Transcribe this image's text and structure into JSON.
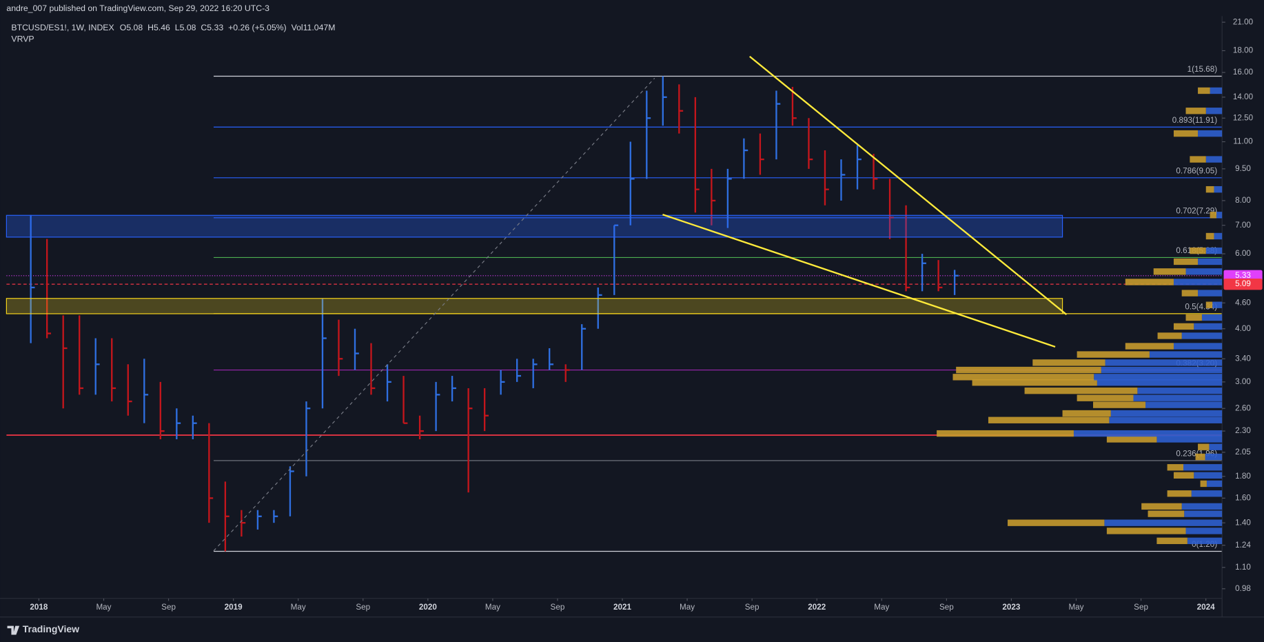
{
  "header": {
    "publisher": "andre_007 published on TradingView.com, Sep 29, 2022 16:20 UTC-3",
    "symbol": "BTCUSD/ES1!, 1W, INDEX",
    "ohlc": [
      {
        "label": "O",
        "value": 5.08
      },
      {
        "label": "H",
        "value": 5.46
      },
      {
        "label": "L",
        "value": 5.08
      },
      {
        "label": "C",
        "value": 5.33
      }
    ],
    "change": "+0.26 (+5.05%)",
    "volume": "Vol11.047M",
    "indicator": "VRVP"
  },
  "footer": {
    "brand": "TradingView"
  },
  "chart_data": {
    "type": "ohlc",
    "log_scale": true,
    "up_color": "#2f6fe0",
    "down_color": "#c4161c",
    "x": [
      "2017-12",
      "2018-01",
      "2018-02",
      "2018-03",
      "2018-04",
      "2018-05",
      "2018-06",
      "2018-07",
      "2018-08",
      "2018-09",
      "2018-10",
      "2018-11",
      "2018-12",
      "2019-01",
      "2019-02",
      "2019-03",
      "2019-04",
      "2019-05",
      "2019-06",
      "2019-07",
      "2019-08",
      "2019-09",
      "2019-10",
      "2019-11",
      "2019-12",
      "2020-01",
      "2020-02",
      "2020-03",
      "2020-04",
      "2020-05",
      "2020-06",
      "2020-07",
      "2020-08",
      "2020-09",
      "2020-10",
      "2020-11",
      "2020-12",
      "2021-01",
      "2021-02",
      "2021-03",
      "2021-04",
      "2021-05",
      "2021-06",
      "2021-07",
      "2021-08",
      "2021-09",
      "2021-10",
      "2021-11",
      "2021-12",
      "2022-01",
      "2022-02",
      "2022-03",
      "2022-04",
      "2022-05",
      "2022-06",
      "2022-07",
      "2022-08",
      "2022-09"
    ],
    "high": [
      7.4,
      6.5,
      4.3,
      4.3,
      3.8,
      3.8,
      3.3,
      3.4,
      3.0,
      2.6,
      2.5,
      2.4,
      1.75,
      1.5,
      1.5,
      1.5,
      1.9,
      2.7,
      4.7,
      4.2,
      4.0,
      3.7,
      3.3,
      3.1,
      2.5,
      3.0,
      3.1,
      2.9,
      2.9,
      3.2,
      3.4,
      3.4,
      3.6,
      3.3,
      4.1,
      5.0,
      7.0,
      11.0,
      14.5,
      15.68,
      15.0,
      14.0,
      9.5,
      9.5,
      11.2,
      11.5,
      14.5,
      14.8,
      12.5,
      10.5,
      10.0,
      10.8,
      10.3,
      9.0,
      7.8,
      6.0,
      5.8,
      5.5
    ],
    "low": [
      3.7,
      3.8,
      2.6,
      2.8,
      2.8,
      2.7,
      2.5,
      2.4,
      2.2,
      2.2,
      2.2,
      1.4,
      1.2,
      1.3,
      1.35,
      1.4,
      1.45,
      1.8,
      2.6,
      3.1,
      3.2,
      2.8,
      2.7,
      2.4,
      2.2,
      2.3,
      2.7,
      1.65,
      2.3,
      2.8,
      3.0,
      2.9,
      3.2,
      3.0,
      3.2,
      4.0,
      4.8,
      7.0,
      9.0,
      12.0,
      11.5,
      7.5,
      7.0,
      6.9,
      9.0,
      9.2,
      10.0,
      12.0,
      9.5,
      7.8,
      8.0,
      8.5,
      8.5,
      6.5,
      4.9,
      4.9,
      4.9,
      4.8
    ],
    "close": [
      5.0,
      3.9,
      3.6,
      2.9,
      3.3,
      2.9,
      2.7,
      2.8,
      2.3,
      2.4,
      2.4,
      1.6,
      1.45,
      1.4,
      1.45,
      1.45,
      1.85,
      2.6,
      3.8,
      3.4,
      3.5,
      2.9,
      3.0,
      2.4,
      2.3,
      2.8,
      2.9,
      2.6,
      2.5,
      3.0,
      3.1,
      3.3,
      3.3,
      3.2,
      4.0,
      4.8,
      7.0,
      9.0,
      12.5,
      14.0,
      13.0,
      8.5,
      8.0,
      9.0,
      10.5,
      10.0,
      13.5,
      12.5,
      10.0,
      8.5,
      9.2,
      10.0,
      9.0,
      7.3,
      5.0,
      5.7,
      5.0,
      5.33
    ],
    "xlim": [
      "2017-11",
      "2024-02"
    ],
    "xticks": [
      {
        "value": "2018-01",
        "label": "2018"
      },
      {
        "value": "2018-05",
        "label": "May"
      },
      {
        "value": "2018-09",
        "label": "Sep"
      },
      {
        "value": "2019-01",
        "label": "2019"
      },
      {
        "value": "2019-05",
        "label": "May"
      },
      {
        "value": "2019-09",
        "label": "Sep"
      },
      {
        "value": "2020-01",
        "label": "2020"
      },
      {
        "value": "2020-05",
        "label": "May"
      },
      {
        "value": "2020-09",
        "label": "Sep"
      },
      {
        "value": "2021-01",
        "label": "2021"
      },
      {
        "value": "2021-05",
        "label": "May"
      },
      {
        "value": "2021-09",
        "label": "Sep"
      },
      {
        "value": "2022-01",
        "label": "2022"
      },
      {
        "value": "2022-05",
        "label": "May"
      },
      {
        "value": "2022-09",
        "label": "Sep"
      },
      {
        "value": "2023-01",
        "label": "2023"
      },
      {
        "value": "2023-05",
        "label": "May"
      },
      {
        "value": "2023-09",
        "label": "Sep"
      },
      {
        "value": "2024-01",
        "label": "2024"
      }
    ],
    "ylim": [
      0.93,
      21.7
    ],
    "yticks": [
      {
        "value": 21,
        "label": "21.00"
      },
      {
        "value": 18,
        "label": "18.00"
      },
      {
        "value": 16,
        "label": "16.00"
      },
      {
        "value": 14,
        "label": "14.00"
      },
      {
        "value": 12.5,
        "label": "12.50"
      },
      {
        "value": 11,
        "label": "11.00"
      },
      {
        "value": 9.5,
        "label": "9.50"
      },
      {
        "value": 8,
        "label": "8.00"
      },
      {
        "value": 7,
        "label": "7.00"
      },
      {
        "value": 6,
        "label": "6.00"
      },
      {
        "value": 4.6,
        "label": "4.60"
      },
      {
        "value": 4,
        "label": "4.00"
      },
      {
        "value": 3.4,
        "label": "3.40"
      },
      {
        "value": 3,
        "label": "3.00"
      },
      {
        "value": 2.6,
        "label": "2.60"
      },
      {
        "value": 2.3,
        "label": "2.30"
      },
      {
        "value": 2.05,
        "label": "2.05"
      },
      {
        "value": 1.8,
        "label": "1.80"
      },
      {
        "value": 1.6,
        "label": "1.60"
      },
      {
        "value": 1.4,
        "label": "1.40"
      },
      {
        "value": 1.24,
        "label": "1.24"
      },
      {
        "value": 1.1,
        "label": "1.10"
      },
      {
        "value": 0.98,
        "label": "0.98"
      }
    ],
    "fib_levels": [
      {
        "label": "1(15.68)",
        "value": 15.68,
        "color": "#d1d4dc"
      },
      {
        "label": "0.893(11.91)",
        "value": 11.91,
        "color": "#2962ff"
      },
      {
        "label": "0.786(9.05)",
        "value": 9.05,
        "color": "#2962ff"
      },
      {
        "label": "0.702(7.29)",
        "value": 7.29,
        "color": "#2962ff"
      },
      {
        "label": "0.618(5.88)",
        "value": 5.88,
        "color": "#4caf50"
      },
      {
        "label": "0.5(4.34)",
        "value": 4.34,
        "color": "#f9d71c"
      },
      {
        "label": "0.382(3.20)",
        "value": 3.2,
        "color": "#9c27b0"
      },
      {
        "label": "0.236(1.96)",
        "value": 1.96,
        "color": "#787b86"
      },
      {
        "label": "0(1.20)",
        "value": 1.2,
        "color": "#d1d4dc"
      }
    ],
    "support_line": {
      "value": 2.25,
      "color": "#f23645"
    },
    "price_tags": [
      {
        "value": 5.33,
        "color": "#e040fb"
      },
      {
        "value": 5.09,
        "color": "#f23645"
      }
    ],
    "volume_profile": {
      "buy_color": "#2f5fcf",
      "sell_color": "#c69a2e",
      "levels": [
        1.27,
        1.34,
        1.4,
        1.47,
        1.53,
        1.64,
        1.73,
        1.81,
        1.89,
        2.0,
        2.11,
        2.2,
        2.27,
        2.44,
        2.53,
        2.65,
        2.75,
        2.86,
        2.99,
        3.08,
        3.2,
        3.33,
        3.48,
        3.64,
        3.85,
        4.05,
        4.25,
        4.55,
        4.85,
        5.15,
        5.45,
        5.75,
        6.1,
        6.6,
        7.4,
        8.5,
        10.0,
        11.5,
        13.0,
        14.5
      ],
      "buy": [
        43,
        45,
        146,
        47,
        50,
        38,
        19,
        35,
        48,
        21,
        16,
        81,
        184,
        140,
        138,
        95,
        110,
        105,
        155,
        159,
        150,
        145,
        90,
        60,
        50,
        35,
        25,
        12,
        30,
        60,
        45,
        30,
        20,
        10,
        7,
        10,
        20,
        30,
        20,
        15
      ],
      "sell": [
        38,
        98,
        120,
        45,
        50,
        30,
        8,
        25,
        20,
        12,
        14,
        62,
        170,
        150,
        60,
        65,
        70,
        140,
        155,
        175,
        180,
        90,
        90,
        60,
        30,
        25,
        20,
        8,
        20,
        60,
        40,
        30,
        20,
        10,
        8,
        10,
        20,
        30,
        25,
        15
      ]
    }
  }
}
